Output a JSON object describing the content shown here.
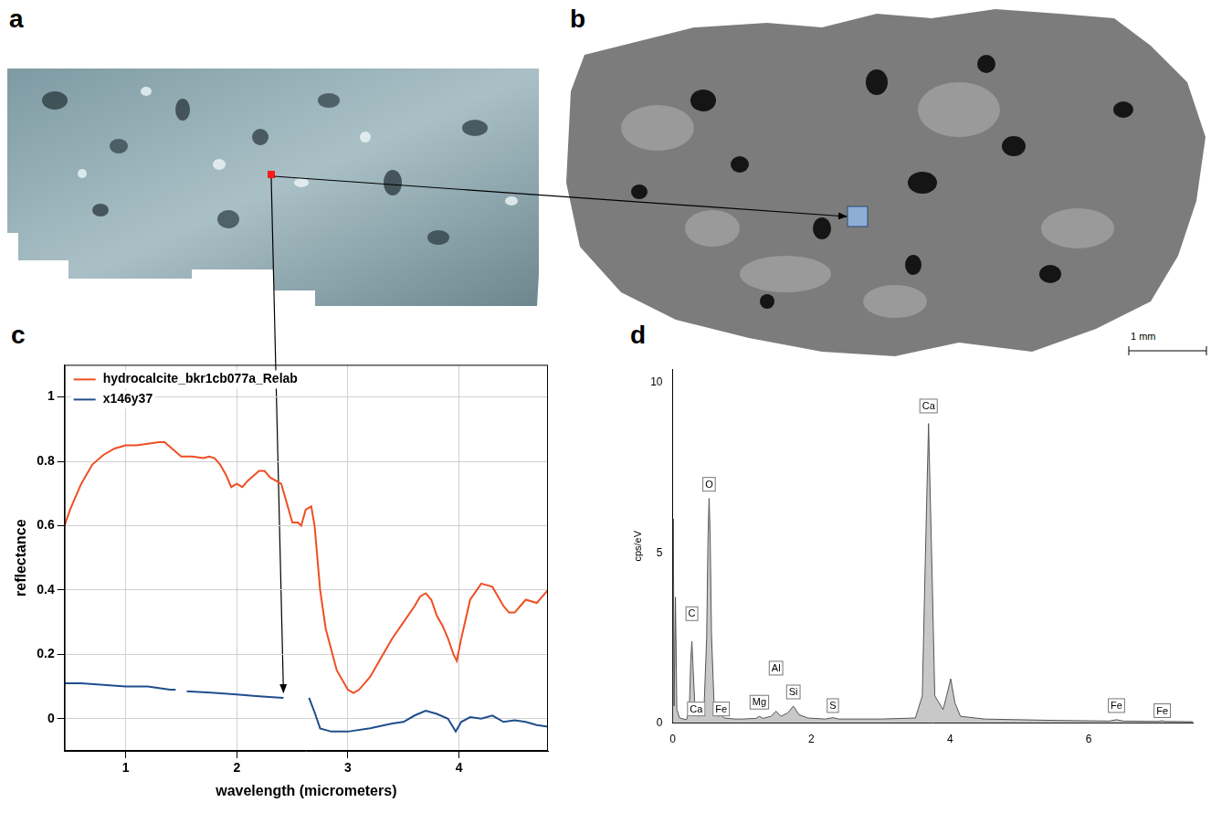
{
  "panels": [
    {
      "label": "a"
    },
    {
      "label": "b",
      "scale_bar": "1 mm"
    }
  ],
  "chart_data": [
    {
      "panel": "c",
      "type": "line",
      "x_label": "wavelength (micrometers)",
      "y_label": "reflectance",
      "xlim": [
        0.45,
        4.8
      ],
      "xticks": [
        1,
        2,
        3,
        4
      ],
      "ylim": [
        -0.1,
        1.1
      ],
      "yticks": [
        0,
        0.2,
        0.4,
        0.6,
        0.8,
        1
      ],
      "grid": true,
      "legend": "upper left",
      "series": [
        {
          "name": "hydrocalcite_bkr1cb077a_Relab",
          "color": "#f04e23",
          "x": [
            0.45,
            0.5,
            0.6,
            0.7,
            0.8,
            0.9,
            1.0,
            1.1,
            1.2,
            1.3,
            1.35,
            1.4,
            1.45,
            1.5,
            1.6,
            1.7,
            1.75,
            1.8,
            1.85,
            1.9,
            1.95,
            2.0,
            2.05,
            2.1,
            2.2,
            2.25,
            2.3,
            2.35,
            2.4,
            2.45,
            2.5,
            2.55,
            2.58,
            2.62,
            2.67,
            2.7,
            2.75,
            2.8,
            2.9,
            3.0,
            3.05,
            3.1,
            3.2,
            3.3,
            3.4,
            3.5,
            3.6,
            3.65,
            3.7,
            3.75,
            3.8,
            3.85,
            3.9,
            3.95,
            3.98,
            4.02,
            4.1,
            4.2,
            4.3,
            4.4,
            4.45,
            4.5,
            4.55,
            4.6,
            4.7,
            4.75,
            4.8
          ],
          "values": [
            0.6,
            0.65,
            0.73,
            0.79,
            0.82,
            0.84,
            0.85,
            0.85,
            0.855,
            0.86,
            0.86,
            0.845,
            0.83,
            0.815,
            0.815,
            0.81,
            0.815,
            0.81,
            0.79,
            0.76,
            0.72,
            0.73,
            0.72,
            0.74,
            0.77,
            0.77,
            0.75,
            0.74,
            0.73,
            0.67,
            0.61,
            0.61,
            0.6,
            0.65,
            0.66,
            0.6,
            0.4,
            0.28,
            0.15,
            0.09,
            0.08,
            0.09,
            0.13,
            0.19,
            0.25,
            0.3,
            0.35,
            0.38,
            0.39,
            0.37,
            0.32,
            0.29,
            0.25,
            0.2,
            0.18,
            0.25,
            0.37,
            0.42,
            0.41,
            0.35,
            0.33,
            0.33,
            0.35,
            0.37,
            0.36,
            0.38,
            0.4
          ]
        },
        {
          "name": "x146y37",
          "color": "#1f4e8c",
          "x": [
            0.45,
            0.6,
            0.8,
            1.0,
            1.2,
            1.4,
            1.45,
            1.5,
            1.55,
            1.8,
            2.0,
            2.2,
            2.42,
            2.55,
            2.65,
            2.7,
            2.75,
            2.85,
            3.0,
            3.2,
            3.4,
            3.5,
            3.6,
            3.7,
            3.8,
            3.9,
            3.97,
            4.02,
            4.1,
            4.2,
            4.3,
            4.4,
            4.5,
            4.6,
            4.7,
            4.8
          ],
          "values": [
            0.11,
            0.11,
            0.105,
            0.1,
            0.1,
            0.09,
            0.09,
            null,
            0.085,
            0.08,
            0.075,
            0.07,
            0.065,
            null,
            0.065,
            0.02,
            -0.03,
            -0.04,
            -0.04,
            -0.03,
            -0.015,
            -0.01,
            0.01,
            0.025,
            0.015,
            0,
            -0.04,
            -0.01,
            0.005,
            0,
            0.01,
            -0.01,
            -0.005,
            -0.01,
            -0.02,
            -0.025
          ]
        }
      ]
    },
    {
      "panel": "d",
      "type": "area",
      "y_label": "cps/eV",
      "xlim": [
        0,
        7.5
      ],
      "xticks": [
        0,
        2,
        4,
        6
      ],
      "ylim": [
        0,
        10.4
      ],
      "yticks": [
        0,
        5,
        10
      ],
      "grid": false,
      "color": "#c8c8c8",
      "x": [
        0,
        0.01,
        0.02,
        0.04,
        0.06,
        0.1,
        0.2,
        0.24,
        0.26,
        0.277,
        0.295,
        0.32,
        0.34,
        0.37,
        0.45,
        0.49,
        0.51,
        0.525,
        0.54,
        0.56,
        0.6,
        0.65,
        0.7,
        0.75,
        0.9,
        1.0,
        1.2,
        1.25,
        1.3,
        1.42,
        1.49,
        1.56,
        1.66,
        1.74,
        1.82,
        1.95,
        2.2,
        2.31,
        2.4,
        3.0,
        3.5,
        3.6,
        3.64,
        3.69,
        3.74,
        3.78,
        3.9,
        3.95,
        4.01,
        4.07,
        4.15,
        4.5,
        5.5,
        6.3,
        6.4,
        6.5,
        7.0,
        7.06,
        7.1,
        7.5
      ],
      "values": [
        0,
        6,
        0.5,
        3.7,
        0.4,
        0.15,
        0.1,
        0.4,
        1.8,
        2.4,
        1.6,
        0.5,
        0.35,
        0.2,
        0.3,
        2.5,
        5.5,
        6.6,
        5.6,
        2.6,
        0.4,
        0.2,
        0.22,
        0.15,
        0.12,
        0.12,
        0.14,
        0.2,
        0.14,
        0.2,
        0.35,
        0.2,
        0.3,
        0.5,
        0.25,
        0.15,
        0.12,
        0.16,
        0.12,
        0.12,
        0.15,
        0.8,
        4.5,
        8.8,
        4.5,
        0.8,
        0.4,
        0.8,
        1.3,
        0.6,
        0.2,
        0.12,
        0.08,
        0.06,
        0.1,
        0.06,
        0.05,
        0.07,
        0.05,
        0.04
      ],
      "annotations": [
        {
          "text": "Ca",
          "x": 3.69,
          "y": 9.1
        },
        {
          "text": "O",
          "x": 0.525,
          "y": 6.8
        },
        {
          "text": "C",
          "x": 0.277,
          "y": 3.0
        },
        {
          "text": "Ca",
          "x": 0.34,
          "y": 0.2
        },
        {
          "text": "Fe",
          "x": 0.7,
          "y": 0.2
        },
        {
          "text": "Mg",
          "x": 1.25,
          "y": 0.4
        },
        {
          "text": "Al",
          "x": 1.49,
          "y": 1.4
        },
        {
          "text": "Si",
          "x": 1.74,
          "y": 0.7
        },
        {
          "text": "S",
          "x": 2.31,
          "y": 0.3
        },
        {
          "text": "Fe",
          "x": 6.4,
          "y": 0.3
        },
        {
          "text": "Fe",
          "x": 7.06,
          "y": 0.15
        }
      ]
    }
  ]
}
